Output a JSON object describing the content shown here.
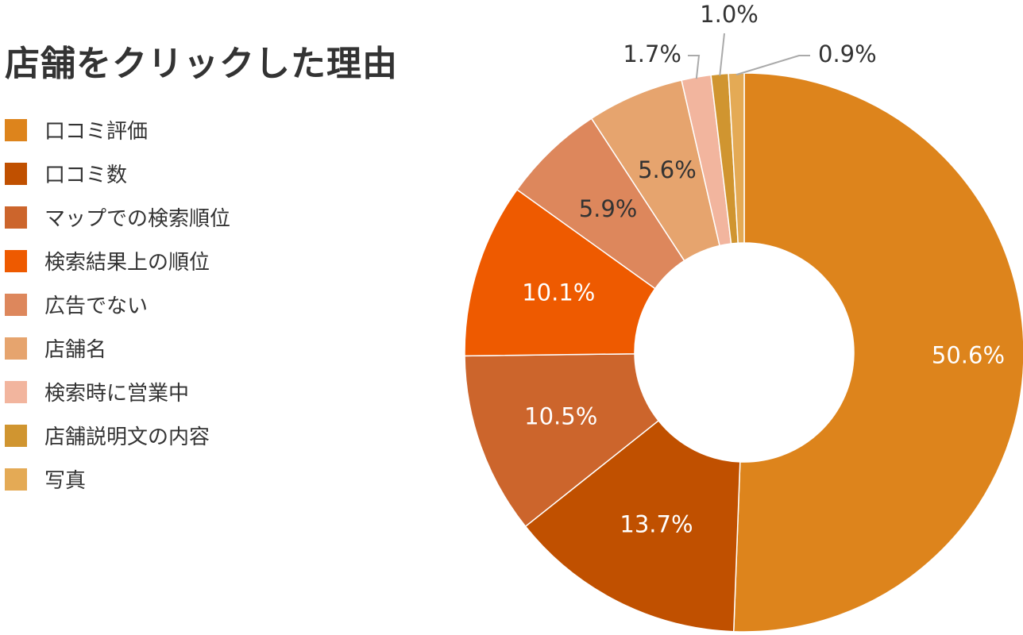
{
  "chart_data": {
    "type": "pie",
    "title": "店舗をクリックした理由",
    "donut": true,
    "legend_position": "left",
    "slices": [
      {
        "label": "口コミ評価",
        "value": 50.6,
        "value_label": "50.6%",
        "color": "#DD841C",
        "label_color": "#ffffff"
      },
      {
        "label": "口コミ数",
        "value": 13.7,
        "value_label": "13.7%",
        "color": "#C05000",
        "label_color": "#ffffff"
      },
      {
        "label": "マップでの検索順位",
        "value": 10.5,
        "value_label": "10.5%",
        "color": "#CC652C",
        "label_color": "#ffffff"
      },
      {
        "label": "検索結果上の順位",
        "value": 10.1,
        "value_label": "10.1%",
        "color": "#EE5A00",
        "label_color": "#ffffff"
      },
      {
        "label": "広告でない",
        "value": 5.9,
        "value_label": "5.9%",
        "color": "#DD875C",
        "label_color": "#333333"
      },
      {
        "label": "店舗名",
        "value": 5.6,
        "value_label": "5.6%",
        "color": "#E6A46E",
        "label_color": "#333333"
      },
      {
        "label": "検索時に営業中",
        "value": 1.7,
        "value_label": "1.7%",
        "color": "#F2B59E",
        "label_color": "#333333"
      },
      {
        "label": "店舗説明文の内容",
        "value": 1.0,
        "value_label": "1.0%",
        "color": "#D09530",
        "label_color": "#333333"
      },
      {
        "label": "写真",
        "value": 0.9,
        "value_label": "0.9%",
        "color": "#E4AA55",
        "label_color": "#333333"
      }
    ]
  }
}
